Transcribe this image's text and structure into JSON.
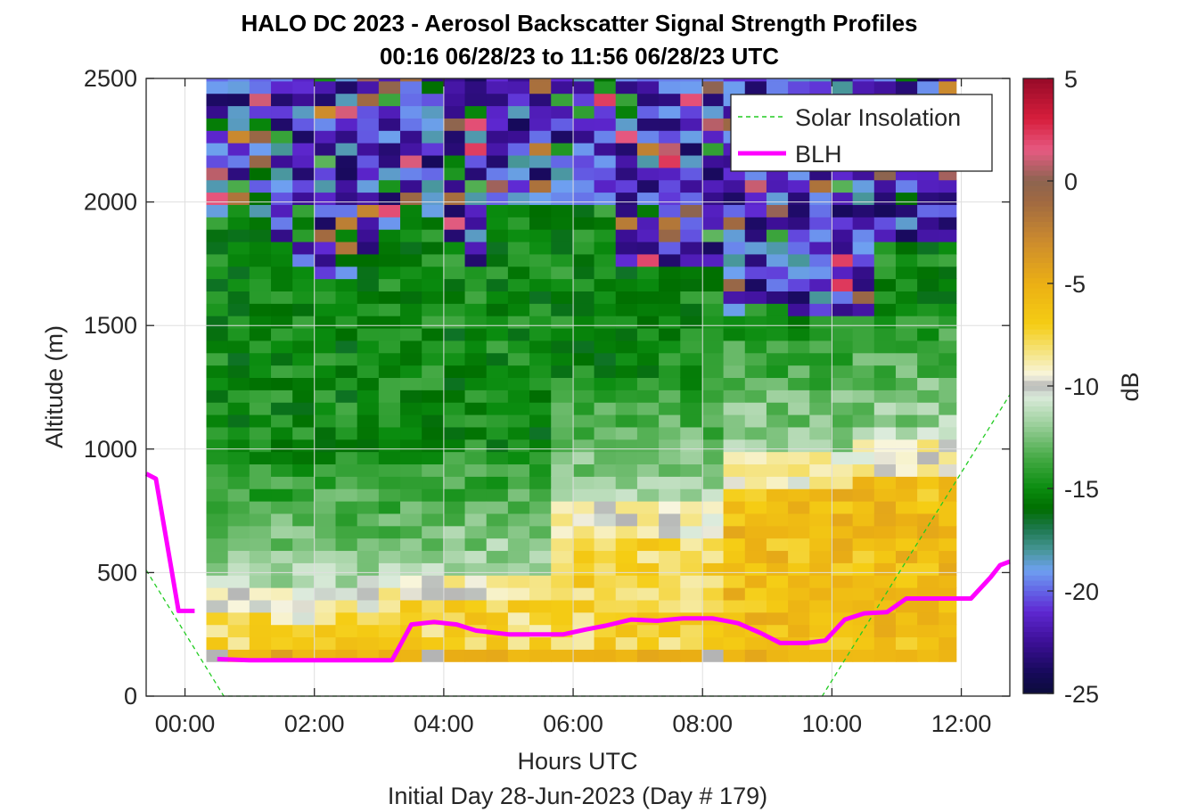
{
  "chart_data": {
    "type": "heatmap",
    "title": "HALO DC 2023 - Aerosol Backscatter Signal Strength Profiles",
    "subtitle": "00:16 06/28/23 to 11:56 06/28/23  UTC",
    "xlabel": "Hours UTC",
    "ylabel": "Altitude (m)",
    "footer": "Initial Day 28-Jun-2023 (Day # 179)",
    "xlim": [
      -0.6,
      12.75
    ],
    "ylim": [
      0,
      2500
    ],
    "x_ticks": [
      0,
      2,
      4,
      6,
      8,
      10,
      12
    ],
    "x_tick_labels": [
      "00:00",
      "02:00",
      "04:00",
      "06:00",
      "08:00",
      "10:00",
      "12:00"
    ],
    "y_ticks": [
      0,
      500,
      1000,
      1500,
      2000,
      2500
    ],
    "y_tick_labels": [
      "0",
      "500",
      "1000",
      "1500",
      "2000",
      "2500"
    ],
    "grid": true,
    "heatmap": {
      "x_start": 0.33,
      "x_end": 11.92,
      "x_step": 0.333,
      "y_start": 140,
      "y_end": 2500,
      "y_step": 50,
      "note_hint": "values in dB; per-cell values are generated from the profile structure below",
      "layers": [
        {
          "name": "surface",
          "x": [
            0.33,
            11.92
          ],
          "y": [
            140,
            180
          ],
          "db": -6
        }
      ]
    },
    "colorbar": {
      "label": "dB",
      "range": [
        -25,
        5
      ],
      "ticks": [
        5,
        0,
        -5,
        -10,
        -15,
        -20,
        -25
      ],
      "tick_labels": [
        "5",
        "0",
        "-5",
        "-10",
        "-15",
        "-20",
        "-25"
      ]
    },
    "series": [
      {
        "name": "Solar Insolation",
        "style": "dashed",
        "color": "#22cc22",
        "x": [
          -0.6,
          0.6,
          9.85,
          12.75
        ],
        "y": [
          510,
          0,
          0,
          1220
        ]
      },
      {
        "name": "BLH",
        "style": "solid",
        "color": "#ff00ff",
        "segments": [
          {
            "x": [
              -0.6,
              -0.45,
              -0.2,
              -0.1,
              0.15
            ],
            "y": [
              900,
              880,
              500,
              345,
              345
            ]
          },
          {
            "x": [
              0.5,
              1.0,
              1.5,
              2.0,
              2.5,
              3.0,
              3.2,
              3.5,
              3.85,
              4.2,
              4.5,
              5.0,
              5.5,
              5.85,
              6.2,
              6.5,
              6.9,
              7.3,
              7.7,
              8.15,
              8.55,
              8.9,
              9.2,
              9.6,
              9.9,
              10.2,
              10.5,
              10.85,
              11.15,
              11.5,
              11.85,
              12.15,
              12.45,
              12.6,
              12.75
            ],
            "y": [
              150,
              145,
              145,
              145,
              145,
              145,
              145,
              290,
              300,
              290,
              265,
              250,
              250,
              250,
              270,
              285,
              310,
              305,
              315,
              315,
              295,
              255,
              215,
              215,
              225,
              310,
              335,
              340,
              395,
              395,
              395,
              395,
              480,
              530,
              545
            ]
          }
        ]
      }
    ],
    "legend": {
      "position": "top-right",
      "entries": [
        "Solar Insolation",
        "BLH"
      ]
    }
  },
  "colors": {
    "blh": "#ff00ff",
    "solar": "#22cc22",
    "axes": "#262626",
    "grid": "#dfdfdf"
  }
}
